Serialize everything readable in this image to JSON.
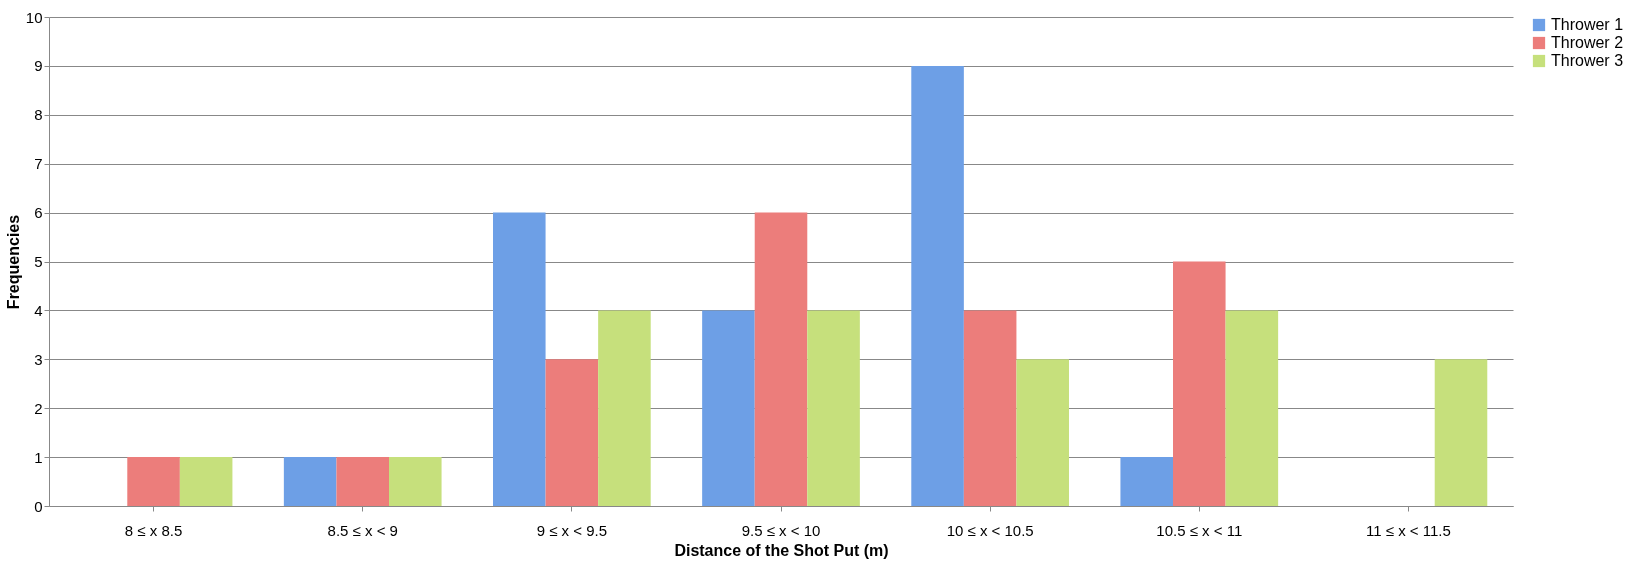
{
  "chart_data": {
    "type": "bar",
    "xlabel": "Distance of the Shot Put (m)",
    "ylabel": "Frequencies",
    "categories": [
      "8 ≤ x 8.5",
      "8.5 ≤ x < 9",
      "9 ≤ x < 9.5",
      "9.5 ≤ x < 10",
      "10 ≤ x < 10.5",
      "10.5 ≤ x < 11",
      "11 ≤ x < 11.5"
    ],
    "series": [
      {
        "name": "Thrower 1",
        "color": "#6d9fe6",
        "values": [
          0,
          1,
          6,
          4,
          9,
          1,
          0
        ]
      },
      {
        "name": "Thrower 2",
        "color": "#ec7d7b",
        "values": [
          1,
          1,
          3,
          6,
          4,
          5,
          0
        ]
      },
      {
        "name": "Thrower 3",
        "color": "#c6e07c",
        "values": [
          1,
          1,
          4,
          4,
          3,
          4,
          3
        ]
      }
    ],
    "ylim": [
      0,
      10
    ],
    "yticks": [
      0,
      1,
      2,
      3,
      4,
      5,
      6,
      7,
      8,
      9,
      10
    ],
    "grid": "y",
    "legend": "right"
  }
}
